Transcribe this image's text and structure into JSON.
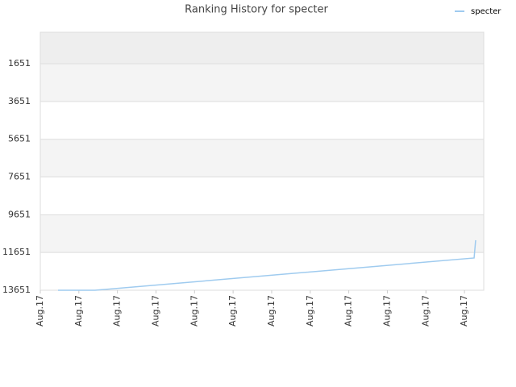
{
  "chart_data": {
    "type": "line",
    "title": "Ranking History for specter",
    "series": [
      {
        "name": "specter",
        "color": "#9fcbef",
        "x": [
          0.46,
          1.42,
          11.25,
          11.29
        ],
        "values": [
          13651,
          13651,
          11942,
          11001
        ]
      }
    ],
    "xlim": [
      0,
      11.5
    ],
    "xticks": [
      {
        "value": 0,
        "label": "Aug.17"
      },
      {
        "value": 1,
        "label": "Aug.17"
      },
      {
        "value": 2,
        "label": "Aug.17"
      },
      {
        "value": 3,
        "label": "Aug.17"
      },
      {
        "value": 4,
        "label": "Aug.17"
      },
      {
        "value": 5,
        "label": "Aug.17"
      },
      {
        "value": 6,
        "label": "Aug.17"
      },
      {
        "value": 7,
        "label": "Aug.17"
      },
      {
        "value": 8,
        "label": "Aug.17"
      },
      {
        "value": 9,
        "label": "Aug.17"
      },
      {
        "value": 10,
        "label": "Aug.17"
      },
      {
        "value": 11,
        "label": "Aug.17"
      }
    ],
    "ylim": [
      13651,
      -16
    ],
    "yticks": [
      1651,
      3651,
      5651,
      7651,
      9651,
      11651,
      13651
    ],
    "grid": true,
    "legend": "top-right"
  }
}
